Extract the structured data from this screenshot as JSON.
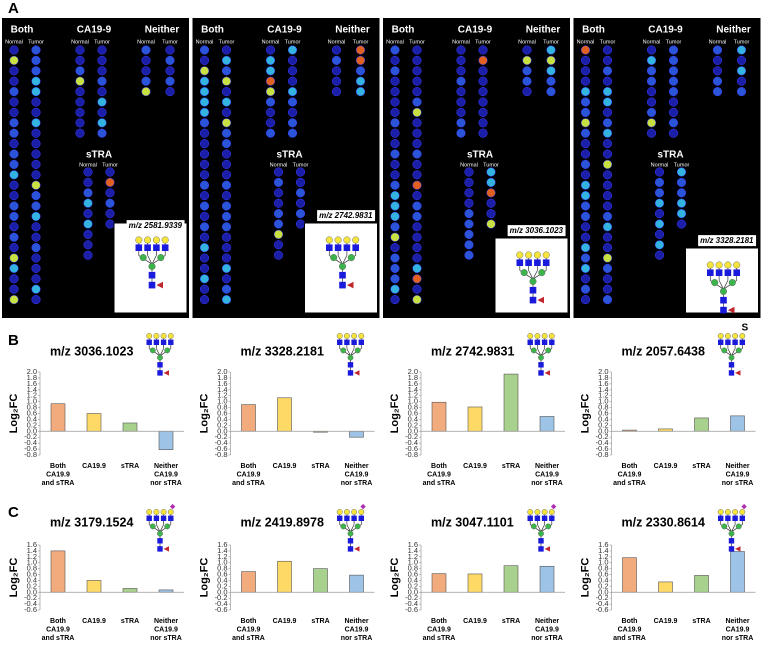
{
  "panel_labels": [
    "A",
    "B",
    "C"
  ],
  "panel_a": [
    {
      "groups": [
        "Both",
        "CA19-9",
        "Neither"
      ],
      "subheads": [
        "Normal",
        "Tumor"
      ],
      "strA": "sTRA",
      "mz": "m/z 2581.9339"
    },
    {
      "groups": [
        "Both",
        "CA19-9",
        "Neither"
      ],
      "subheads": [
        "Normal",
        "Tumor"
      ],
      "strA": "sTRA",
      "mz": "m/z 2742.9831"
    },
    {
      "groups": [
        "Both",
        "CA19-9",
        "Neither"
      ],
      "subheads": [
        "Normal",
        "Tumor"
      ],
      "strA": "sTRA",
      "mz": "m/z 3036.1023"
    },
    {
      "groups": [
        "Both",
        "CA19-9",
        "Neither"
      ],
      "subheads": [
        "Normal",
        "Tumor"
      ],
      "strA": "sTRA",
      "mz": "m/z 3328.2181"
    }
  ],
  "glycan_annotation": "S",
  "chart_data": [
    {
      "type": "bar",
      "title": "m/z 3036.1023",
      "y_label": "Log₂FC",
      "categories": [
        [
          "Both",
          "CA19.9",
          "and sTRA"
        ],
        [
          "CA19.9"
        ],
        [
          "sTRA"
        ],
        [
          "Neither",
          "CA19.9",
          "nor sTRA"
        ]
      ],
      "values": [
        0.93,
        0.6,
        0.28,
        -0.62
      ],
      "colors": [
        "#f2ab7c",
        "#ffd966",
        "#a9d18e",
        "#9dc3e6"
      ],
      "ylim": [
        -0.8,
        2.0
      ],
      "yticks": [
        {
          "value": 2,
          "label": "2.0"
        },
        1.8,
        1.6,
        1.4,
        1.2,
        {
          "value": 1,
          "label": "1.0"
        },
        0.8,
        0.6,
        0.4,
        0.2,
        {
          "value": 0,
          "label": "0.0"
        },
        -0.2,
        -0.4,
        -0.6,
        -0.8
      ]
    },
    {
      "type": "bar",
      "title": "m/z 3328.2181",
      "y_label": "Log₂FC",
      "categories": [
        [
          "Both",
          "CA19.9",
          "and sTRA"
        ],
        [
          "CA19.9"
        ],
        [
          "sTRA"
        ],
        [
          "Neither",
          "CA19.9",
          "nor sTRA"
        ]
      ],
      "values": [
        0.9,
        1.13,
        -0.03,
        -0.2
      ],
      "colors": [
        "#f2ab7c",
        "#ffd966",
        "#a9d18e",
        "#9dc3e6"
      ],
      "ylim": [
        -0.8,
        2.0
      ],
      "yticks": [
        {
          "value": 2,
          "label": "2.0"
        },
        1.8,
        1.6,
        1.4,
        1.2,
        {
          "value": 1,
          "label": "1.0"
        },
        0.8,
        0.6,
        0.4,
        0.2,
        {
          "value": 0,
          "label": "0.0"
        },
        -0.2,
        -0.4,
        -0.6,
        -0.8
      ]
    },
    {
      "type": "bar",
      "title": "m/z 2742.9831",
      "y_label": "Log₂FC",
      "categories": [
        [
          "Both",
          "CA19.9",
          "and sTRA"
        ],
        [
          "CA19.9"
        ],
        [
          "sTRA"
        ],
        [
          "Neither",
          "CA19.9",
          "nor sTRA"
        ]
      ],
      "values": [
        0.98,
        0.82,
        1.93,
        0.5
      ],
      "colors": [
        "#f2ab7c",
        "#ffd966",
        "#a9d18e",
        "#9dc3e6"
      ],
      "ylim": [
        -0.8,
        2.0
      ],
      "yticks": [
        {
          "value": 2,
          "label": "2.0"
        },
        1.8,
        1.6,
        1.4,
        1.2,
        {
          "value": 1,
          "label": "1.0"
        },
        0.8,
        0.6,
        0.4,
        0.2,
        {
          "value": 0,
          "label": "0.0"
        },
        -0.2,
        -0.4,
        -0.6,
        -0.8
      ]
    },
    {
      "type": "bar",
      "title": "m/z 2057.6438",
      "y_label": "Log₂FC",
      "categories": [
        [
          "Both",
          "CA19.9",
          "and sTRA"
        ],
        [
          "CA19.9"
        ],
        [
          "sTRA"
        ],
        [
          "Neither",
          "CA19.9",
          "nor sTRA"
        ]
      ],
      "values": [
        0.04,
        0.08,
        0.45,
        0.52
      ],
      "colors": [
        "#f2ab7c",
        "#ffd966",
        "#a9d18e",
        "#9dc3e6"
      ],
      "ylim": [
        -0.8,
        2.0
      ],
      "yticks": [
        {
          "value": 2,
          "label": "2.0"
        },
        1.8,
        1.6,
        1.4,
        1.2,
        {
          "value": 1,
          "label": "1.0"
        },
        0.8,
        0.6,
        0.4,
        0.2,
        {
          "value": 0,
          "label": "0.0"
        },
        -0.2,
        -0.4,
        -0.6,
        -0.8
      ]
    },
    {
      "type": "bar",
      "title": "m/z 3179.1524",
      "y_label": "Log₂FC",
      "categories": [
        [
          "Both",
          "CA19.9",
          "and sTRA"
        ],
        [
          "CA19.9"
        ],
        [
          "sTRA"
        ],
        [
          "Neither",
          "CA19.9",
          "nor sTRA"
        ]
      ],
      "values": [
        1.4,
        0.4,
        0.13,
        0.08
      ],
      "colors": [
        "#f2ab7c",
        "#ffd966",
        "#a9d18e",
        "#9dc3e6"
      ],
      "ylim": [
        -0.6,
        1.6
      ],
      "yticks": [
        1.6,
        1.4,
        1.2,
        {
          "value": 1,
          "label": "1.0"
        },
        0.8,
        0.6,
        0.4,
        0.2,
        {
          "value": 0,
          "label": "0.0"
        },
        -0.2,
        -0.4,
        -0.6
      ]
    },
    {
      "type": "bar",
      "title": "m/z 2419.8978",
      "y_label": "Log₂FC",
      "categories": [
        [
          "Both",
          "CA19.9",
          "and sTRA"
        ],
        [
          "CA19.9"
        ],
        [
          "sTRA"
        ],
        [
          "Neither",
          "CA19.9",
          "nor sTRA"
        ]
      ],
      "values": [
        0.7,
        1.05,
        0.8,
        0.58
      ],
      "colors": [
        "#f2ab7c",
        "#ffd966",
        "#a9d18e",
        "#9dc3e6"
      ],
      "ylim": [
        -0.6,
        1.6
      ],
      "yticks": [
        1.6,
        1.4,
        1.2,
        {
          "value": 1,
          "label": "1.0"
        },
        0.8,
        0.6,
        0.4,
        0.2,
        {
          "value": 0,
          "label": "0.0"
        },
        -0.2,
        -0.4,
        -0.6
      ]
    },
    {
      "type": "bar",
      "title": "m/z 3047.1101",
      "y_label": "Log₂FC",
      "categories": [
        [
          "Both",
          "CA19.9",
          "and sTRA"
        ],
        [
          "CA19.9"
        ],
        [
          "sTRA"
        ],
        [
          "Neither",
          "CA19.9",
          "nor sTRA"
        ]
      ],
      "values": [
        0.63,
        0.62,
        0.9,
        0.88
      ],
      "colors": [
        "#f2ab7c",
        "#ffd966",
        "#a9d18e",
        "#9dc3e6"
      ],
      "ylim": [
        -0.6,
        1.6
      ],
      "yticks": [
        1.6,
        1.4,
        1.2,
        {
          "value": 1,
          "label": "1.0"
        },
        0.8,
        0.6,
        0.4,
        0.2,
        {
          "value": 0,
          "label": "0.0"
        },
        -0.2,
        -0.4,
        -0.6
      ]
    },
    {
      "type": "bar",
      "title": "m/z 2330.8614",
      "y_label": "Log₂FC",
      "categories": [
        [
          "Both",
          "CA19.9",
          "and sTRA"
        ],
        [
          "CA19.9"
        ],
        [
          "sTRA"
        ],
        [
          "Neither",
          "CA19.9",
          "nor sTRA"
        ]
      ],
      "values": [
        1.17,
        0.35,
        0.57,
        1.38
      ],
      "colors": [
        "#f2ab7c",
        "#ffd966",
        "#a9d18e",
        "#9dc3e6"
      ],
      "ylim": [
        -0.6,
        1.6
      ],
      "yticks": [
        1.6,
        1.4,
        1.2,
        {
          "value": 1,
          "label": "1.0"
        },
        0.8,
        0.6,
        0.4,
        0.2,
        {
          "value": 0,
          "label": "0.0"
        },
        -0.2,
        -0.4,
        -0.6
      ]
    }
  ]
}
